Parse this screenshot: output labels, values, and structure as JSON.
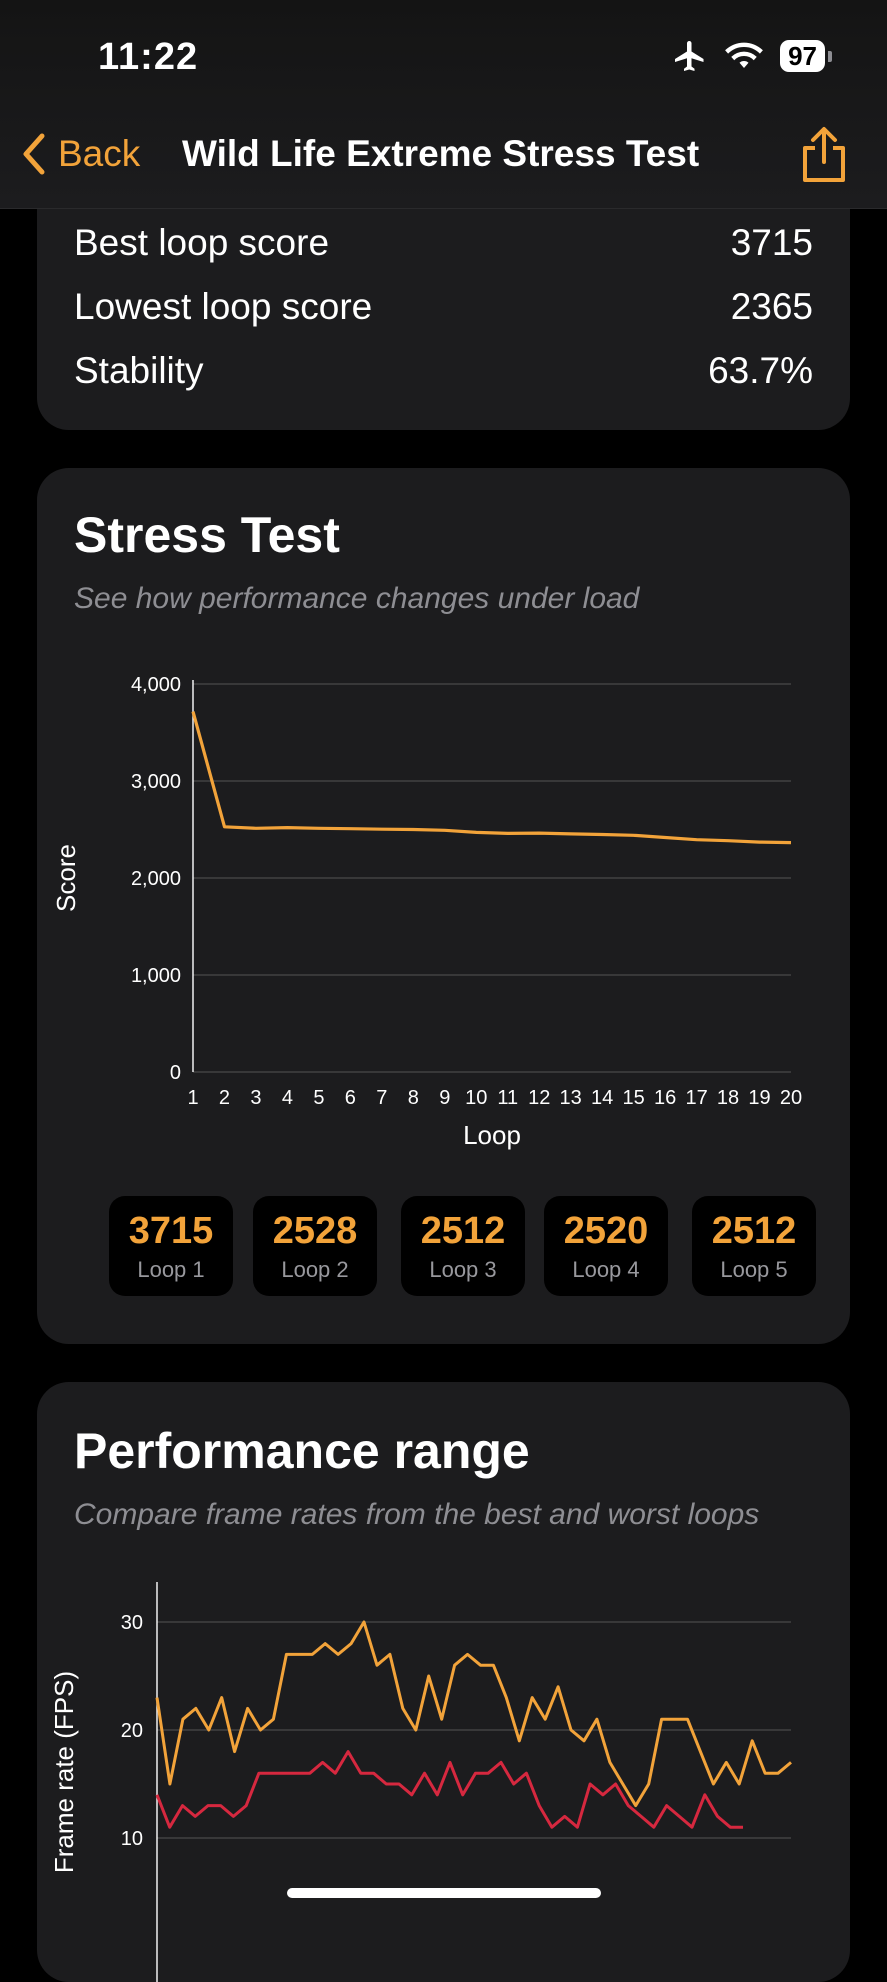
{
  "status": {
    "time": "11:22",
    "battery": "97"
  },
  "nav": {
    "back_label": "Back",
    "title": "Wild Life Extreme Stress Test"
  },
  "summary": {
    "rows": [
      {
        "label": "Best loop score",
        "value": "3715"
      },
      {
        "label": "Lowest loop score",
        "value": "2365"
      },
      {
        "label": "Stability",
        "value": "63.7%"
      }
    ]
  },
  "stress": {
    "title": "Stress Test",
    "subtitle": "See how performance changes under load",
    "loops": [
      {
        "score": "3715",
        "label": "Loop 1"
      },
      {
        "score": "2528",
        "label": "Loop 2"
      },
      {
        "score": "2512",
        "label": "Loop 3"
      },
      {
        "score": "2520",
        "label": "Loop 4"
      },
      {
        "score": "2512",
        "label": "Loop 5"
      }
    ]
  },
  "perf": {
    "title": "Performance range",
    "subtitle": "Compare frame rates from the best and worst loops"
  },
  "colors": {
    "accent": "#f2a33a",
    "worst": "#d6283f",
    "card": "#1c1c1e"
  },
  "chart_data": [
    {
      "type": "line",
      "xlabel": "Loop",
      "ylabel": "Score",
      "ylim": [
        0,
        4000
      ],
      "yticks": [
        "0",
        "1,000",
        "2,000",
        "3,000",
        "4,000"
      ],
      "x": [
        1,
        2,
        3,
        4,
        5,
        6,
        7,
        8,
        9,
        10,
        11,
        12,
        13,
        14,
        15,
        16,
        17,
        18,
        19,
        20
      ],
      "series": [
        {
          "values": [
            3715,
            2528,
            2512,
            2520,
            2512,
            2508,
            2503,
            2500,
            2492,
            2470,
            2460,
            2463,
            2455,
            2448,
            2440,
            2418,
            2395,
            2385,
            2370,
            2365
          ]
        }
      ],
      "grid": true
    },
    {
      "type": "line",
      "ylabel": "Frame rate (FPS)",
      "yticks": [
        "10",
        "20",
        "30"
      ],
      "series": [
        {
          "values": [
            23,
            15,
            21,
            22,
            20,
            23,
            18,
            22,
            20,
            21,
            27,
            27,
            27,
            28,
            27,
            28,
            30,
            26,
            27,
            22,
            20,
            25,
            21,
            26,
            27,
            26,
            26,
            23,
            19,
            23,
            21,
            24,
            20,
            19,
            21,
            17,
            15,
            13,
            15,
            21,
            21,
            21,
            18,
            15,
            17,
            15,
            19,
            16,
            16,
            17
          ]
        },
        {
          "values": [
            14,
            11,
            13,
            12,
            13,
            13,
            12,
            13,
            16,
            16,
            16,
            16,
            16,
            17,
            16,
            18,
            16,
            16,
            15,
            15,
            14,
            16,
            14,
            17,
            14,
            16,
            16,
            17,
            15,
            16,
            13,
            11,
            12,
            11,
            15,
            14,
            15,
            13,
            12,
            11,
            13,
            12,
            11,
            14,
            12,
            11,
            11
          ]
        }
      ],
      "grid": true
    }
  ]
}
